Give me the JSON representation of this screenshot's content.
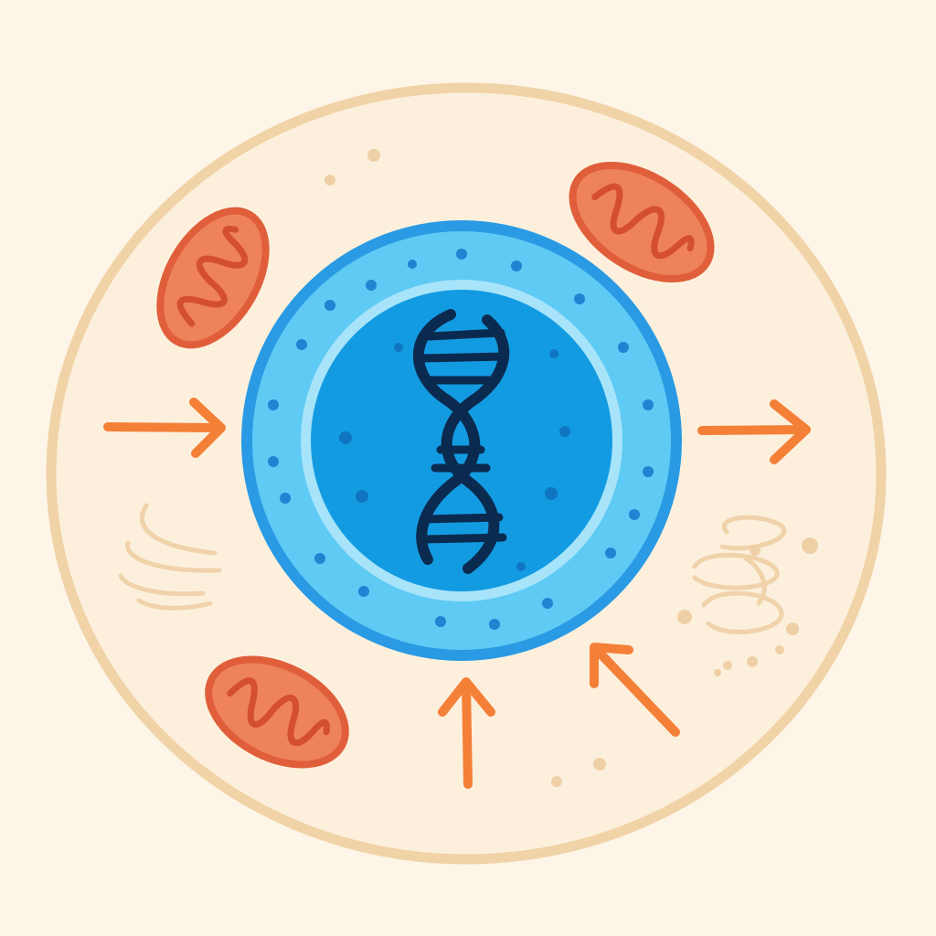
{
  "colors": {
    "background": "#fdf6e8",
    "cytoplasm": "#fcf0dc",
    "cell_membrane": "#f1d3a8",
    "nucleus_outer": "#2a9ae4",
    "nuclear_envelope": "#5fcaf4",
    "nucleus_inner": "#139be2",
    "nucleus_ring": "#a7e4fa",
    "nuclear_pore": "#1f84d2",
    "nucleoplasm_dot": "#0f75c0",
    "dna": "#0b2a4f",
    "mitochondrion_fill": "#ee825b",
    "mitochondrion_outline": "#e05e3a",
    "cristae": "#d44f31",
    "arrow": "#f47f37",
    "faint_sketch": "#f0d2ab",
    "faint_dot": "#efd0a6"
  },
  "diagram": {
    "elements": [
      {
        "name": "cell-membrane",
        "kind": "membrane"
      },
      {
        "name": "nucleus",
        "kind": "organelle",
        "contains": "dna-double-helix-icon"
      },
      {
        "name": "mitochondrion",
        "kind": "organelle",
        "count": 3
      },
      {
        "name": "golgi-apparatus-sketch",
        "kind": "organelle-sketch"
      },
      {
        "name": "endoplasmic-reticulum-sketch",
        "kind": "organelle-sketch"
      }
    ],
    "arrows": [
      {
        "name": "arrow-left-inward",
        "direction": "toward-nucleus"
      },
      {
        "name": "arrow-right-outward",
        "direction": "away-from-nucleus"
      },
      {
        "name": "arrow-bottom-up",
        "direction": "toward-nucleus"
      },
      {
        "name": "arrow-bottom-right-diagonal",
        "direction": "toward-nucleus"
      }
    ],
    "icons": [
      "dna-double-helix-icon",
      "mitochondrion-icon"
    ]
  }
}
